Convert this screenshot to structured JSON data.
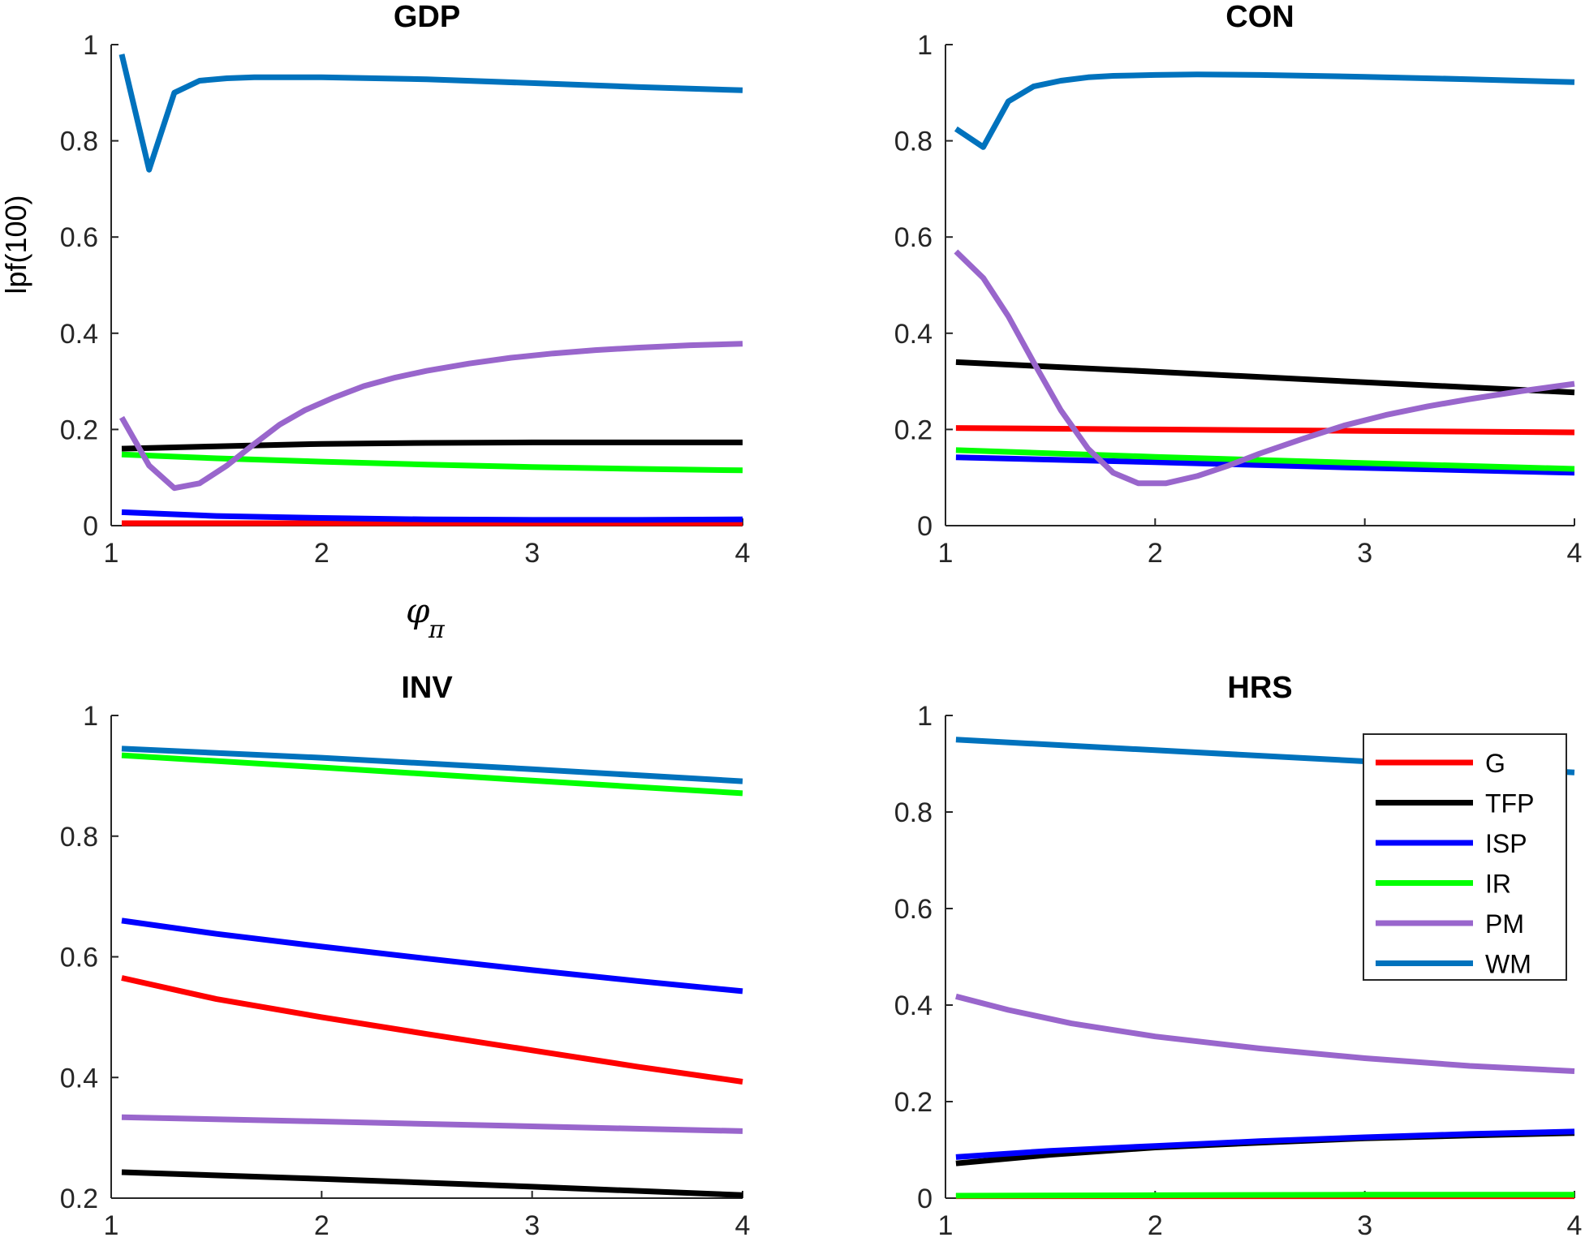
{
  "chart_data": [
    {
      "type": "line",
      "title": "GDP",
      "xlabel": "φ",
      "xlabel_subscript": "π",
      "ylabel": "lpf(100)",
      "xlim": [
        1,
        4
      ],
      "ylim": [
        0,
        1
      ],
      "xticks": [
        "1",
        "2",
        "3",
        "4"
      ],
      "yticks": [
        "0",
        "0.2",
        "0.4",
        "0.6",
        "0.8",
        "1"
      ],
      "legend": false,
      "series": [
        {
          "name": "G",
          "color": "#ff0000",
          "x": [
            1.05,
            1.5,
            2,
            2.5,
            3,
            3.5,
            4
          ],
          "y": [
            0.005,
            0.005,
            0.005,
            0.005,
            0.005,
            0.005,
            0.005
          ]
        },
        {
          "name": "TFP",
          "color": "#000000",
          "x": [
            1.05,
            1.5,
            2,
            2.5,
            3,
            3.5,
            4
          ],
          "y": [
            0.16,
            0.165,
            0.17,
            0.172,
            0.173,
            0.173,
            0.173
          ]
        },
        {
          "name": "ISP",
          "color": "#0000ff",
          "x": [
            1.05,
            1.5,
            2,
            2.5,
            3,
            3.5,
            4
          ],
          "y": [
            0.028,
            0.02,
            0.016,
            0.013,
            0.012,
            0.012,
            0.013
          ]
        },
        {
          "name": "IR",
          "color": "#00ff00",
          "x": [
            1.05,
            1.5,
            2,
            2.5,
            3,
            3.5,
            4
          ],
          "y": [
            0.148,
            0.14,
            0.133,
            0.127,
            0.122,
            0.118,
            0.115
          ]
        },
        {
          "name": "PM",
          "color": "#9966cc",
          "x": [
            1.05,
            1.18,
            1.3,
            1.42,
            1.55,
            1.68,
            1.8,
            1.92,
            2.05,
            2.2,
            2.35,
            2.5,
            2.7,
            2.9,
            3.1,
            3.3,
            3.5,
            3.75,
            4
          ],
          "y": [
            0.225,
            0.125,
            0.078,
            0.088,
            0.125,
            0.17,
            0.21,
            0.24,
            0.265,
            0.29,
            0.308,
            0.322,
            0.337,
            0.349,
            0.358,
            0.365,
            0.37,
            0.375,
            0.378
          ]
        },
        {
          "name": "WM",
          "color": "#0072bd",
          "x": [
            1.05,
            1.18,
            1.3,
            1.42,
            1.55,
            1.68,
            1.8,
            2,
            2.5,
            3,
            3.5,
            4
          ],
          "y": [
            0.98,
            0.74,
            0.9,
            0.925,
            0.93,
            0.932,
            0.932,
            0.932,
            0.928,
            0.92,
            0.912,
            0.905
          ]
        }
      ]
    },
    {
      "type": "line",
      "title": "CON",
      "xlim": [
        1,
        4
      ],
      "ylim": [
        0,
        1
      ],
      "xticks": [
        "1",
        "2",
        "3",
        "4"
      ],
      "yticks": [
        "0",
        "0.2",
        "0.4",
        "0.6",
        "0.8",
        "1"
      ],
      "legend": false,
      "series": [
        {
          "name": "G",
          "color": "#ff0000",
          "x": [
            1.05,
            2,
            3,
            4
          ],
          "y": [
            0.203,
            0.2,
            0.197,
            0.194
          ]
        },
        {
          "name": "TFP",
          "color": "#000000",
          "x": [
            1.05,
            2,
            3,
            4
          ],
          "y": [
            0.34,
            0.32,
            0.298,
            0.277
          ]
        },
        {
          "name": "ISP",
          "color": "#0000ff",
          "x": [
            1.05,
            2,
            3,
            4
          ],
          "y": [
            0.142,
            0.132,
            0.12,
            0.11
          ]
        },
        {
          "name": "IR",
          "color": "#00ff00",
          "x": [
            1.05,
            2,
            3,
            4
          ],
          "y": [
            0.157,
            0.143,
            0.13,
            0.118
          ]
        },
        {
          "name": "PM",
          "color": "#9966cc",
          "x": [
            1.05,
            1.18,
            1.3,
            1.42,
            1.55,
            1.68,
            1.8,
            1.92,
            2.05,
            2.2,
            2.35,
            2.5,
            2.7,
            2.9,
            3.1,
            3.3,
            3.5,
            3.75,
            4
          ],
          "y": [
            0.57,
            0.515,
            0.435,
            0.34,
            0.24,
            0.16,
            0.11,
            0.088,
            0.088,
            0.103,
            0.125,
            0.15,
            0.18,
            0.208,
            0.23,
            0.248,
            0.263,
            0.28,
            0.295
          ]
        },
        {
          "name": "WM",
          "color": "#0072bd",
          "x": [
            1.05,
            1.18,
            1.3,
            1.42,
            1.55,
            1.68,
            1.8,
            2,
            2.2,
            2.5,
            3,
            3.5,
            4
          ],
          "y": [
            0.825,
            0.787,
            0.882,
            0.913,
            0.925,
            0.932,
            0.935,
            0.937,
            0.938,
            0.937,
            0.933,
            0.928,
            0.922
          ]
        }
      ]
    },
    {
      "type": "line",
      "title": "INV",
      "xlim": [
        1,
        4
      ],
      "ylim": [
        0.2,
        1
      ],
      "xticks": [
        "1",
        "2",
        "3",
        "4"
      ],
      "yticks": [
        "0.2",
        "0.4",
        "0.6",
        "0.8",
        "1"
      ],
      "legend": false,
      "series": [
        {
          "name": "G",
          "color": "#ff0000",
          "x": [
            1.05,
            1.5,
            2,
            2.5,
            3,
            3.5,
            4
          ],
          "y": [
            0.565,
            0.53,
            0.5,
            0.472,
            0.445,
            0.418,
            0.393
          ]
        },
        {
          "name": "TFP",
          "color": "#000000",
          "x": [
            1.05,
            2,
            3,
            4
          ],
          "y": [
            0.243,
            0.232,
            0.219,
            0.205
          ]
        },
        {
          "name": "ISP",
          "color": "#0000ff",
          "x": [
            1.05,
            1.5,
            2,
            2.5,
            3,
            3.5,
            4
          ],
          "y": [
            0.66,
            0.638,
            0.617,
            0.597,
            0.578,
            0.56,
            0.543
          ]
        },
        {
          "name": "IR",
          "color": "#00ff00",
          "x": [
            1.05,
            2,
            3,
            4
          ],
          "y": [
            0.934,
            0.914,
            0.892,
            0.871
          ]
        },
        {
          "name": "PM",
          "color": "#9966cc",
          "x": [
            1.05,
            2,
            3,
            4
          ],
          "y": [
            0.334,
            0.327,
            0.319,
            0.311
          ]
        },
        {
          "name": "WM",
          "color": "#0072bd",
          "x": [
            1.05,
            2,
            3,
            4
          ],
          "y": [
            0.945,
            0.93,
            0.911,
            0.891
          ]
        }
      ]
    },
    {
      "type": "line",
      "title": "HRS",
      "xlim": [
        1,
        4
      ],
      "ylim": [
        0,
        1
      ],
      "xticks": [
        "1",
        "2",
        "3",
        "4"
      ],
      "yticks": [
        "0",
        "0.2",
        "0.4",
        "0.6",
        "0.8",
        "1"
      ],
      "legend": true,
      "legend_position": "top-right",
      "series": [
        {
          "name": "G",
          "color": "#ff0000",
          "x": [
            1.05,
            2,
            3,
            4
          ],
          "y": [
            0.004,
            0.004,
            0.004,
            0.004
          ]
        },
        {
          "name": "TFP",
          "color": "#000000",
          "x": [
            1.05,
            1.5,
            2,
            2.5,
            3,
            3.5,
            4
          ],
          "y": [
            0.072,
            0.09,
            0.105,
            0.115,
            0.124,
            0.13,
            0.135
          ]
        },
        {
          "name": "ISP",
          "color": "#0000ff",
          "x": [
            1.05,
            1.5,
            2,
            2.5,
            3,
            3.5,
            4
          ],
          "y": [
            0.085,
            0.098,
            0.108,
            0.118,
            0.126,
            0.133,
            0.138
          ]
        },
        {
          "name": "IR",
          "color": "#00ff00",
          "x": [
            1.05,
            2,
            3,
            4
          ],
          "y": [
            0.005,
            0.006,
            0.007,
            0.007
          ]
        },
        {
          "name": "PM",
          "color": "#9966cc",
          "x": [
            1.05,
            1.3,
            1.6,
            2,
            2.5,
            3,
            3.5,
            4
          ],
          "y": [
            0.418,
            0.39,
            0.362,
            0.335,
            0.31,
            0.29,
            0.274,
            0.263
          ]
        },
        {
          "name": "WM",
          "color": "#0072bd",
          "x": [
            1.05,
            2,
            3,
            4
          ],
          "y": [
            0.95,
            0.928,
            0.905,
            0.882
          ]
        }
      ]
    }
  ]
}
